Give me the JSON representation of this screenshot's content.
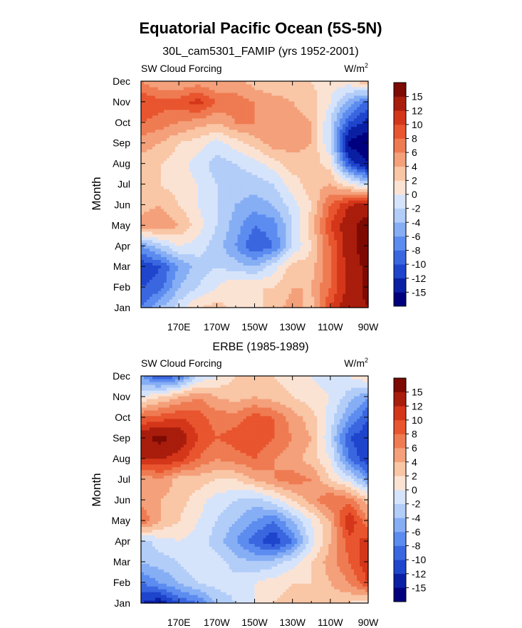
{
  "figure": {
    "title": "Equatorial Pacific Ocean (5S-5N)"
  },
  "colorbar": {
    "colors": [
      "#00007f",
      "#0a1fa3",
      "#1e45cc",
      "#3a66e0",
      "#5c8cef",
      "#86aef5",
      "#b2cdf8",
      "#d6e4fb",
      "#fbe3d4",
      "#f9c6a6",
      "#f4a07a",
      "#ef7b52",
      "#e8552e",
      "#d4361a",
      "#a91d0c",
      "#7d0a03"
    ],
    "labels": [
      "-15",
      "-12",
      "-10",
      "-8",
      "-6",
      "-4",
      "-2",
      "0",
      "2",
      "4",
      "6",
      "8",
      "10",
      "12",
      "15"
    ]
  },
  "chart_data": [
    {
      "type": "heatmap",
      "subtitle": "30L_cam5301_FAMIP (yrs 1952-2001)",
      "left_label": "SW Cloud Forcing",
      "units_base": "W/m",
      "units_exp": "2",
      "ylabel": "Month",
      "x_ticks": [
        "170E",
        "170W",
        "150W",
        "130W",
        "110W",
        "90W"
      ],
      "y_ticks": [
        "Jan",
        "Feb",
        "Mar",
        "Apr",
        "May",
        "Jun",
        "Jul",
        "Aug",
        "Sep",
        "Oct",
        "Nov",
        "Dec"
      ],
      "levels": [
        -15,
        -12,
        -10,
        -8,
        -6,
        -4,
        -2,
        0,
        2,
        4,
        6,
        8,
        10,
        12,
        15
      ],
      "x": [
        150,
        160,
        170,
        180,
        190,
        200,
        210,
        220,
        230,
        240,
        250,
        260,
        270
      ],
      "y": [
        "Jan",
        "Feb",
        "Mar",
        "Apr",
        "May",
        "Jun",
        "Jul",
        "Aug",
        "Sep",
        "Oct",
        "Nov",
        "Dec"
      ],
      "z": [
        [
          -8,
          -4,
          -1,
          2,
          3,
          1,
          1,
          3,
          5,
          3,
          10,
          14,
          15
        ],
        [
          -10,
          -9,
          -4,
          -2,
          0,
          2,
          2,
          2,
          4,
          4,
          8,
          13,
          16
        ],
        [
          -12,
          -10,
          -6,
          -3,
          -2,
          -3,
          -4,
          -1,
          3,
          3,
          8,
          13,
          16
        ],
        [
          -6,
          -3,
          0,
          -1,
          -3,
          -6,
          -10,
          -8,
          -2,
          2,
          8,
          14,
          17
        ],
        [
          5,
          6,
          4,
          1,
          -2,
          -5,
          -8,
          -7,
          -2,
          3,
          10,
          14,
          17
        ],
        [
          3,
          4,
          2,
          0,
          -2,
          -4,
          -5,
          -4,
          -1,
          2,
          8,
          12,
          13
        ],
        [
          2,
          2,
          1,
          0,
          -2,
          -3,
          -3,
          -2,
          1,
          3,
          4,
          1,
          -2
        ],
        [
          3,
          2,
          1,
          -1,
          -3,
          -2,
          -1,
          1,
          3,
          3,
          1,
          -10,
          -15
        ],
        [
          5,
          4,
          2,
          1,
          -1,
          1,
          3,
          5,
          5,
          4,
          -2,
          -16,
          -18
        ],
        [
          8,
          7,
          6,
          5,
          4,
          6,
          6,
          6,
          5,
          4,
          -2,
          -10,
          -13
        ],
        [
          10,
          9,
          9,
          11,
          8,
          7,
          6,
          5,
          4,
          3,
          0,
          -5,
          -9
        ],
        [
          6,
          4,
          4,
          5,
          4,
          5,
          3,
          2,
          3,
          2,
          1,
          1,
          4
        ]
      ]
    },
    {
      "type": "heatmap",
      "subtitle": "ERBE (1985-1989)",
      "left_label": "SW Cloud Forcing",
      "units_base": "W/m",
      "units_exp": "2",
      "ylabel": "Month",
      "x_ticks": [
        "170E",
        "170W",
        "150W",
        "130W",
        "110W",
        "90W"
      ],
      "y_ticks": [
        "Jan",
        "Feb",
        "Mar",
        "Apr",
        "May",
        "Jun",
        "Jul",
        "Aug",
        "Sep",
        "Oct",
        "Nov",
        "Dec"
      ],
      "levels": [
        -15,
        -12,
        -10,
        -8,
        -6,
        -4,
        -2,
        0,
        2,
        4,
        6,
        8,
        10,
        12,
        15
      ],
      "x": [
        150,
        160,
        170,
        180,
        190,
        200,
        210,
        220,
        230,
        240,
        250,
        260,
        270
      ],
      "y": [
        "Jan",
        "Feb",
        "Mar",
        "Apr",
        "May",
        "Jun",
        "Jul",
        "Aug",
        "Sep",
        "Oct",
        "Nov",
        "Dec"
      ],
      "z": [
        [
          -12,
          -14,
          -10,
          -8,
          -4,
          -2,
          0,
          2,
          3,
          2,
          3,
          2,
          0
        ],
        [
          -8,
          -6,
          -4,
          -2,
          -1,
          -1,
          0,
          1,
          2,
          2,
          4,
          6,
          10
        ],
        [
          -4,
          -3,
          -2,
          0,
          -1,
          -3,
          -4,
          -3,
          -1,
          2,
          5,
          8,
          12
        ],
        [
          -3,
          -1,
          0,
          -1,
          -3,
          -6,
          -9,
          -12,
          -8,
          -1,
          4,
          9,
          11
        ],
        [
          8,
          4,
          2,
          0,
          -2,
          -4,
          -6,
          -8,
          -4,
          0,
          4,
          12,
          6
        ],
        [
          5,
          4,
          3,
          1,
          -1,
          -2,
          -3,
          -1,
          2,
          5,
          8,
          7,
          3
        ],
        [
          4,
          6,
          3,
          3,
          2,
          2,
          4,
          6,
          7,
          6,
          2,
          -1,
          -6
        ],
        [
          12,
          12,
          11,
          8,
          6,
          7,
          8,
          6,
          5,
          3,
          0,
          -8,
          -12
        ],
        [
          14,
          16,
          14,
          10,
          8,
          9,
          10,
          8,
          6,
          4,
          -2,
          -10,
          -12
        ],
        [
          8,
          9,
          10,
          9,
          7,
          7,
          9,
          8,
          5,
          3,
          -1,
          -6,
          -10
        ],
        [
          0,
          2,
          4,
          6,
          4,
          3,
          4,
          3,
          2,
          1,
          0,
          -3,
          -6
        ],
        [
          -6,
          -10,
          -8,
          -2,
          0,
          2,
          3,
          2,
          1,
          0,
          -1,
          0,
          2
        ]
      ]
    }
  ]
}
